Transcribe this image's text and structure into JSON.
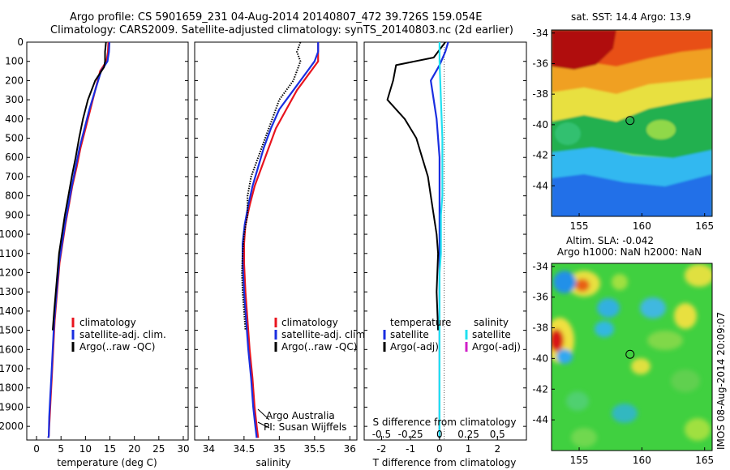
{
  "header": {
    "line1": "Argo profile: CS 5901659_231 04-Aug-2014 20140807_472 39.726S 159.054E",
    "line2": "Climatology: CARS2009. Satellite-adjusted climatology: synTS_20140803.nc (2d earlier)"
  },
  "colors": {
    "climatology": "#e8141e",
    "satellite": "#1a2ee0",
    "argo": "#000000",
    "satellite_salinity": "#20e0f0",
    "argo_adj_salinity": "#d020c8"
  },
  "chart_data": [
    {
      "type": "line",
      "xlabel": "temperature (deg C)",
      "xlim": [
        -2,
        31
      ],
      "xticks": [
        0,
        5,
        10,
        15,
        20,
        25,
        30
      ],
      "ylim": [
        2060,
        0
      ],
      "yticks": [
        0,
        100,
        200,
        300,
        400,
        500,
        600,
        700,
        800,
        900,
        1000,
        1100,
        1200,
        1300,
        1400,
        1500,
        1600,
        1700,
        1800,
        1900,
        2000
      ],
      "legend": {
        "placement": "lower-center",
        "entries": [
          "climatology",
          "satellite-adj. clim.",
          "Argo(..raw -QC)"
        ]
      },
      "series": [
        {
          "name": "climatology",
          "color_key": "climatology",
          "x": [
            14.7,
            14.6,
            14.3,
            13.0,
            12.0,
            11.0,
            10.0,
            9.0,
            8.2,
            7.3,
            6.6,
            5.9,
            5.3,
            4.7,
            4.2,
            3.7,
            3.4,
            3.1,
            2.9,
            2.7,
            2.5,
            2.4
          ],
          "y": [
            0,
            50,
            100,
            150,
            250,
            350,
            450,
            550,
            650,
            750,
            850,
            950,
            1050,
            1150,
            1300,
            1450,
            1600,
            1750,
            1850,
            1950,
            2050,
            2060
          ]
        },
        {
          "name": "satellite-adj. clim.",
          "color_key": "satellite",
          "x": [
            14.9,
            14.8,
            14.5,
            13.2,
            12.0,
            10.8,
            9.8,
            8.8,
            8.0,
            7.2,
            6.5,
            5.8,
            5.2,
            4.6,
            4.1,
            3.6,
            3.3,
            3.0,
            2.8,
            2.6,
            2.5,
            2.4
          ],
          "y": [
            0,
            50,
            100,
            150,
            250,
            350,
            450,
            550,
            650,
            750,
            850,
            950,
            1050,
            1150,
            1300,
            1450,
            1600,
            1750,
            1850,
            1950,
            2050,
            2060
          ]
        },
        {
          "name": "Argo(..raw -QC)",
          "color_key": "argo",
          "x": [
            14.2,
            14.0,
            14.0,
            13.8,
            12.0,
            10.5,
            9.5,
            8.7,
            8.0,
            7.2,
            6.5,
            5.8,
            5.2,
            4.6,
            4.1,
            3.6,
            3.3
          ],
          "y": [
            0,
            50,
            100,
            130,
            200,
            300,
            400,
            500,
            600,
            700,
            800,
            900,
            1000,
            1100,
            1250,
            1400,
            1500
          ]
        }
      ]
    },
    {
      "type": "line",
      "xlabel": "salinity",
      "xlim": [
        33.8,
        36.1
      ],
      "xticks": [
        34,
        34.5,
        35,
        35.5,
        36
      ],
      "xticklabels": [
        "34",
        "34.5",
        "35",
        "35.5",
        "36"
      ],
      "ylim": [
        2060,
        0
      ],
      "legend": {
        "placement": "lower-center",
        "entries": [
          "climatology",
          "satellite-adj. clim.",
          "Argo(..raw -QC)"
        ]
      },
      "annotation": [
        "Argo Australia",
        "PI: Susan Wijffels"
      ],
      "series": [
        {
          "name": "climatology",
          "color_key": "climatology",
          "x": [
            35.55,
            35.55,
            35.55,
            35.45,
            35.25,
            35.1,
            34.95,
            34.85,
            34.75,
            34.65,
            34.58,
            34.52,
            34.5,
            34.5,
            34.52,
            34.55,
            34.58,
            34.62,
            34.65,
            34.68,
            34.7
          ],
          "y": [
            0,
            50,
            100,
            150,
            250,
            350,
            450,
            550,
            650,
            750,
            850,
            950,
            1050,
            1150,
            1300,
            1450,
            1600,
            1750,
            1900,
            2000,
            2060
          ]
        },
        {
          "name": "satellite-adj. clim.",
          "color_key": "satellite",
          "x": [
            35.55,
            35.55,
            35.5,
            35.4,
            35.2,
            35.0,
            34.88,
            34.78,
            34.7,
            34.62,
            34.56,
            34.51,
            34.48,
            34.48,
            34.5,
            34.53,
            34.56,
            34.6,
            34.63,
            34.66,
            34.68
          ],
          "y": [
            0,
            50,
            100,
            150,
            250,
            350,
            450,
            550,
            650,
            750,
            850,
            950,
            1050,
            1150,
            1300,
            1450,
            1600,
            1750,
            1900,
            2000,
            2060
          ]
        },
        {
          "name": "Argo(..raw -QC)",
          "color_key": "argo",
          "x": [
            35.3,
            35.25,
            35.3,
            35.2,
            35.0,
            34.9,
            34.8,
            34.7,
            34.6,
            34.55,
            34.55,
            34.5,
            34.48,
            34.47,
            34.48,
            34.5,
            34.52
          ],
          "y": [
            0,
            50,
            100,
            200,
            300,
            400,
            500,
            600,
            700,
            800,
            900,
            1000,
            1100,
            1200,
            1300,
            1400,
            1500
          ]
        }
      ]
    },
    {
      "type": "line",
      "xlabel": "T difference from climatology",
      "top_label": "S difference from climatology",
      "xlim": [
        -2.6,
        3.0
      ],
      "xticks": [
        -2,
        -1,
        0,
        1,
        2
      ],
      "top_ticks": [
        -0.5,
        -0.25,
        0,
        0.25,
        0.5
      ],
      "top_ticklabels": [
        "-0.5",
        "-0.25",
        "0",
        "0.25",
        "0.5"
      ],
      "ylim": [
        2060,
        0
      ],
      "legend": {
        "placement": "lower-center",
        "temperature_title": "temperature",
        "salinity_title": "salinity",
        "entries": [
          "satellite",
          "Argo(-adj)",
          "satellite",
          "Argo(-adj)"
        ]
      },
      "series": [
        {
          "name": "satellite",
          "color_key": "satellite",
          "x": [
            0.3,
            0.2,
            0.0,
            -0.3,
            -0.2,
            -0.1,
            -0.05,
            0.0,
            0.0,
            0.0,
            0.0,
            0.0,
            0.0,
            0.0,
            0.0,
            0.0,
            0.0,
            0.0,
            0.0
          ],
          "y": [
            0,
            50,
            120,
            200,
            300,
            400,
            500,
            600,
            700,
            800,
            900,
            1000,
            1100,
            1200,
            1400,
            1600,
            1800,
            2000,
            2060
          ]
        },
        {
          "name": "Argo(-adj)",
          "color_key": "argo",
          "x": [
            0.2,
            -0.2,
            -1.5,
            -1.6,
            -1.8,
            -1.2,
            -0.8,
            -0.6,
            -0.4,
            -0.3,
            -0.2,
            -0.1,
            -0.05,
            -0.1,
            -0.05
          ],
          "y": [
            0,
            80,
            120,
            200,
            300,
            400,
            500,
            600,
            700,
            800,
            900,
            1000,
            1100,
            1300,
            1500
          ]
        },
        {
          "name": "satellite",
          "color_key": "satellite_salinity",
          "x": [
            0.0,
            0.0,
            0.05,
            0.1,
            0.1,
            0.1,
            0.1,
            0.05,
            0.05,
            0.05,
            0.0,
            0.0,
            0.0,
            0.0,
            0.0,
            0.0,
            0.0
          ],
          "y": [
            0,
            100,
            300,
            500,
            600,
            700,
            800,
            900,
            1000,
            1100,
            1200,
            1300,
            1500,
            1700,
            1900,
            2000,
            2060
          ]
        }
      ]
    },
    {
      "type": "heatmap",
      "title": "sat. SST: 14.4 Argo: 13.9",
      "xlim": [
        152.8,
        165.6
      ],
      "ylim": [
        -46.0,
        -33.8
      ],
      "xticks": [
        155,
        160,
        165
      ],
      "yticks": [
        -34,
        -36,
        -38,
        -40,
        -42,
        -44
      ],
      "yticklabels": [
        "-34",
        "-36",
        "-38",
        "-40",
        "-42",
        "-44"
      ],
      "marker": {
        "lon": 159.054,
        "lat": -39.726
      }
    },
    {
      "type": "heatmap",
      "title": [
        "Altim. SLA: -0.042",
        "Argo h1000: NaN h2000: NaN"
      ],
      "xlim": [
        152.8,
        165.6
      ],
      "ylim": [
        -46.0,
        -33.8
      ],
      "xticks": [
        155,
        160,
        165
      ],
      "yticks": [
        -34,
        -36,
        -38,
        -40,
        -42,
        -44
      ],
      "yticklabels": [
        "-34",
        "-36",
        "-38",
        "-40",
        "-42",
        "-44"
      ],
      "marker": {
        "lon": 159.054,
        "lat": -39.726
      },
      "side_label": "IMOS 08-Aug-2014 20:09:07"
    }
  ]
}
